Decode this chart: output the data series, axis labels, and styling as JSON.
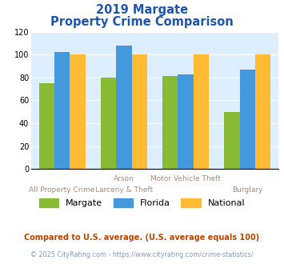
{
  "title_line1": "2019 Margate",
  "title_line2": "Property Crime Comparison",
  "top_labels": [
    "",
    "Arson",
    "Motor Vehicle Theft",
    ""
  ],
  "bottom_labels": [
    "All Property Crime",
    "Larceny & Theft",
    "",
    "Burglary"
  ],
  "margate": [
    75,
    80,
    81,
    50
  ],
  "florida": [
    102,
    108,
    83,
    87
  ],
  "national": [
    100,
    100,
    100,
    100
  ],
  "margate_color": "#88bb33",
  "florida_color": "#4499dd",
  "national_color": "#ffbb33",
  "ylim": [
    0,
    120
  ],
  "yticks": [
    0,
    20,
    40,
    60,
    80,
    100,
    120
  ],
  "background_color": "#ddeeff",
  "title_color": "#2255aa",
  "label_color": "#aa8877",
  "footnote1": "Compared to U.S. average. (U.S. average equals 100)",
  "footnote2": "© 2025 CityRating.com - https://www.cityrating.com/crime-statistics/",
  "footnote1_color": "#bb4400",
  "footnote2_color": "#8899aa",
  "bar_width": 0.25,
  "n_groups": 4
}
